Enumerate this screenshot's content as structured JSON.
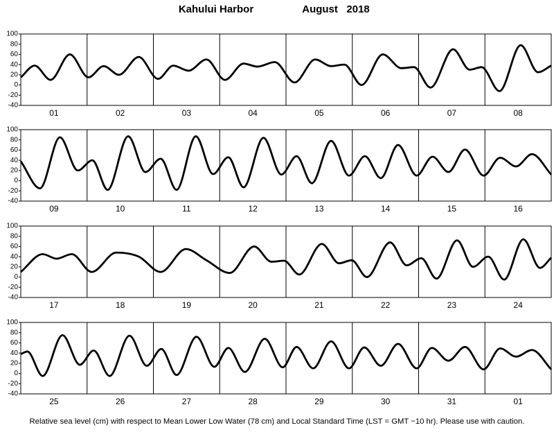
{
  "title": "Kahului Harbor",
  "subtitle": "August   2018",
  "note": "Relative sea level (cm) with respect to Mean Lower Low Water (78 cm) and Local Standard Time (LST = GMT −10 hr). Please use with caution.",
  "chart_data": [
    {
      "type": "line",
      "categories": [
        "01",
        "02",
        "03",
        "04",
        "05",
        "06",
        "07",
        "08"
      ],
      "xlim": [
        0,
        8
      ],
      "ylim": [
        -40,
        100
      ],
      "yticks": [
        -40,
        -20,
        0,
        20,
        40,
        60,
        80,
        100
      ],
      "series": [
        {
          "color": "#000000",
          "x": [
            0,
            0.21,
            0.45,
            0.74,
            1.02,
            1.25,
            1.48,
            1.78,
            2.07,
            2.3,
            2.53,
            2.8,
            3.08,
            3.36,
            3.57,
            3.83,
            4.13,
            4.44,
            4.68,
            4.88,
            5.14,
            5.46,
            5.74,
            5.93,
            6.18,
            6.52,
            6.77,
            6.95,
            7.22,
            7.54,
            7.8,
            8
          ],
          "values": [
            15,
            38,
            10,
            60,
            15,
            37,
            20,
            55,
            12,
            38,
            28,
            50,
            10,
            42,
            36,
            45,
            5,
            50,
            37,
            40,
            0,
            60,
            33,
            35,
            -5,
            70,
            30,
            35,
            -12,
            78,
            25,
            38
          ]
        }
      ]
    },
    {
      "type": "line",
      "categories": [
        "09",
        "10",
        "11",
        "12",
        "13",
        "14",
        "15",
        "16"
      ],
      "xlim": [
        0,
        8
      ],
      "ylim": [
        -40,
        100
      ],
      "yticks": [
        -40,
        -20,
        0,
        20,
        40,
        60,
        80,
        100
      ],
      "series": [
        {
          "color": "#000000",
          "x": [
            0,
            0.29,
            0.59,
            0.86,
            1.08,
            1.31,
            1.62,
            1.88,
            2.11,
            2.35,
            2.64,
            2.9,
            3.13,
            3.36,
            3.66,
            3.93,
            4.16,
            4.39,
            4.68,
            4.95,
            5.19,
            5.43,
            5.69,
            5.97,
            6.21,
            6.45,
            6.7,
            6.98,
            7.23,
            7.47,
            7.71,
            8
          ],
          "values": [
            38,
            -15,
            85,
            20,
            40,
            -18,
            87,
            17,
            43,
            -18,
            87,
            13,
            46,
            -13,
            84,
            12,
            48,
            -5,
            78,
            10,
            48,
            5,
            70,
            10,
            47,
            17,
            61,
            10,
            45,
            28,
            52,
            12
          ]
        }
      ]
    },
    {
      "type": "line",
      "categories": [
        "17",
        "18",
        "19",
        "20",
        "21",
        "22",
        "23",
        "24"
      ],
      "xlim": [
        0,
        8
      ],
      "ylim": [
        -40,
        100
      ],
      "yticks": [
        -40,
        -20,
        0,
        20,
        40,
        60,
        80,
        100
      ],
      "series": [
        {
          "color": "#000000",
          "x": [
            0,
            0.33,
            0.54,
            0.77,
            1.07,
            1.44,
            1.78,
            2.11,
            2.49,
            2.8,
            3.15,
            3.52,
            3.78,
            3.97,
            4.2,
            4.54,
            4.8,
            4.99,
            5.22,
            5.57,
            5.82,
            6.04,
            6.27,
            6.58,
            6.82,
            7.05,
            7.29,
            7.58,
            7.83,
            8
          ],
          "values": [
            10,
            45,
            36,
            45,
            10,
            48,
            40,
            10,
            55,
            33,
            8,
            60,
            30,
            32,
            5,
            65,
            27,
            33,
            0,
            68,
            23,
            37,
            -3,
            72,
            20,
            40,
            -5,
            74,
            18,
            38
          ]
        }
      ]
    },
    {
      "type": "line",
      "categories": [
        "25",
        "26",
        "27",
        "28",
        "29",
        "30",
        "31",
        "01"
      ],
      "xlim": [
        0,
        8
      ],
      "ylim": [
        -40,
        100
      ],
      "yticks": [
        -40,
        -20,
        0,
        20,
        40,
        60,
        80,
        100
      ],
      "series": [
        {
          "color": "#000000",
          "x": [
            0,
            0.1,
            0.33,
            0.63,
            0.89,
            1.1,
            1.34,
            1.64,
            1.9,
            2.12,
            2.35,
            2.65,
            2.92,
            3.13,
            3.38,
            3.68,
            3.95,
            4.16,
            4.41,
            4.68,
            4.95,
            5.18,
            5.43,
            5.69,
            5.97,
            6.2,
            6.45,
            6.7,
            6.98,
            7.23,
            7.47,
            7.71,
            8
          ],
          "values": [
            38,
            43,
            -5,
            75,
            17,
            45,
            -5,
            74,
            15,
            48,
            -3,
            72,
            13,
            50,
            3,
            68,
            12,
            52,
            10,
            63,
            10,
            51,
            15,
            58,
            10,
            50,
            25,
            52,
            8,
            49,
            33,
            46,
            8
          ]
        }
      ]
    }
  ]
}
